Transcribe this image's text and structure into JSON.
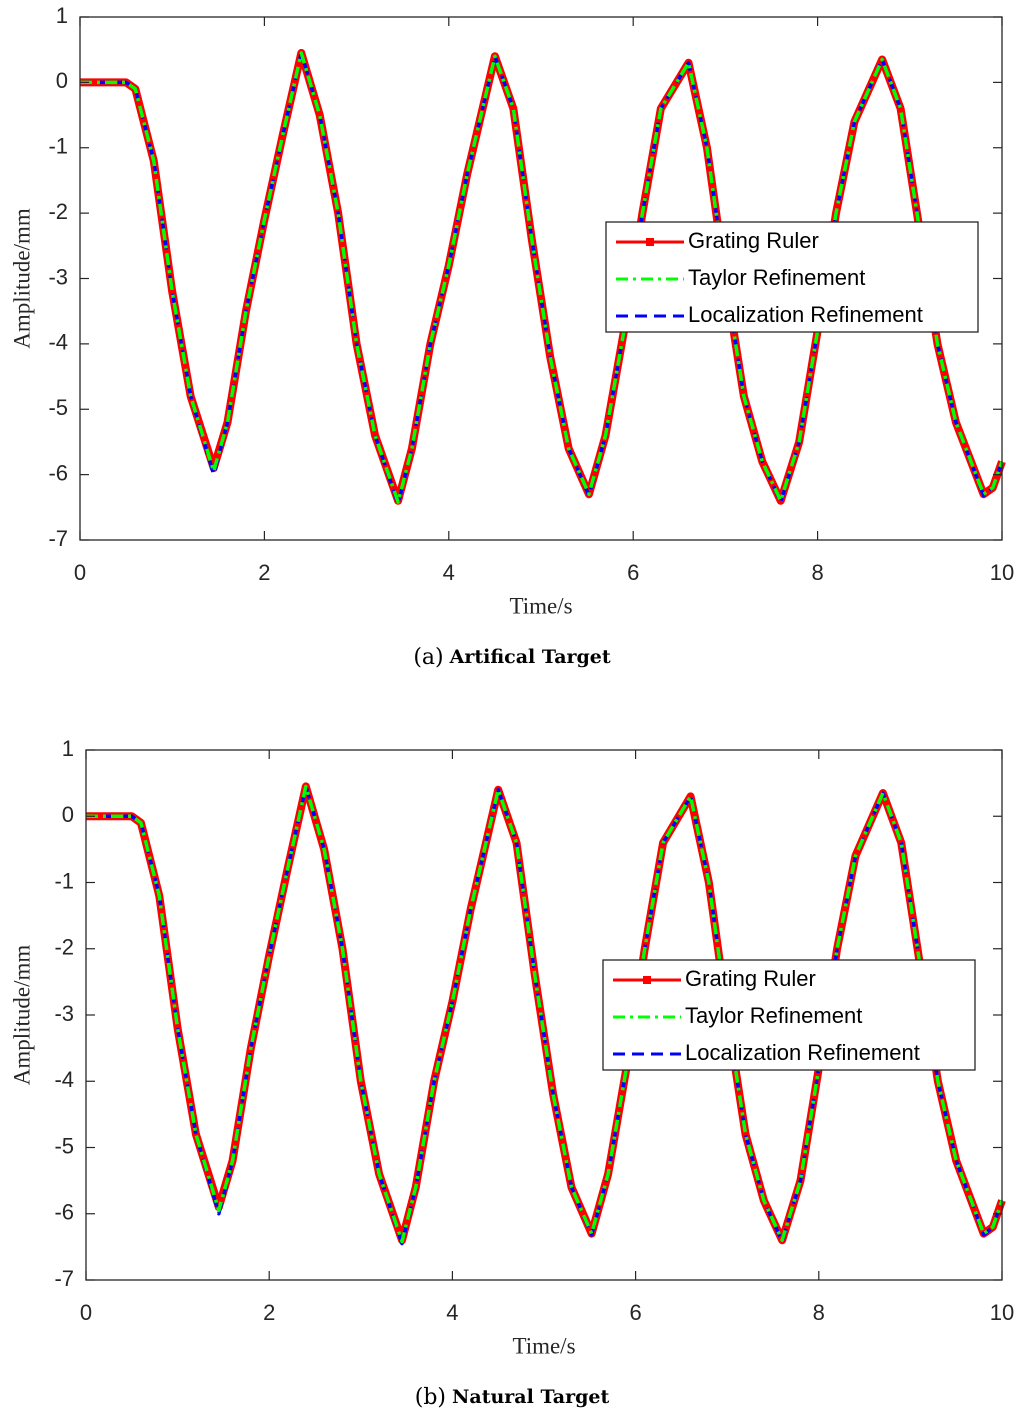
{
  "chart_data": [
    {
      "type": "line",
      "caption_label": "(a)",
      "caption": "Artifical Target",
      "xlabel": "Time/s",
      "ylabel": "Amplitude/mm",
      "xlim": [
        0,
        10
      ],
      "ylim": [
        -7,
        1
      ],
      "xticks": [
        0,
        2,
        4,
        6,
        8,
        10
      ],
      "yticks": [
        -7,
        -6,
        -5,
        -4,
        -3,
        -2,
        -1,
        0,
        1
      ],
      "legend": "right",
      "x": [
        0,
        0.5,
        0.6,
        0.8,
        1,
        1.2,
        1.45,
        1.6,
        1.8,
        2,
        2.2,
        2.4,
        2.6,
        2.8,
        3,
        3.2,
        3.45,
        3.6,
        3.8,
        4,
        4.2,
        4.5,
        4.7,
        4.9,
        5.1,
        5.3,
        5.52,
        5.7,
        5.9,
        6.1,
        6.3,
        6.6,
        6.8,
        7,
        7.2,
        7.4,
        7.6,
        7.8,
        8,
        8.2,
        8.4,
        8.7,
        8.9,
        9.1,
        9.3,
        9.5,
        9.8,
        9.9,
        10
      ],
      "series": [
        {
          "name": "Grating Ruler",
          "color": "#ff0000",
          "values": [
            0,
            0,
            -0.1,
            -1.2,
            -3.2,
            -4.8,
            -5.9,
            -5.2,
            -3.5,
            -2.1,
            -0.8,
            0.45,
            -0.5,
            -2,
            -4,
            -5.4,
            -6.4,
            -5.6,
            -4,
            -2.8,
            -1.4,
            0.4,
            -0.4,
            -2.4,
            -4.2,
            -5.6,
            -6.3,
            -5.4,
            -3.8,
            -2,
            -0.4,
            0.3,
            -1,
            -3,
            -4.8,
            -5.8,
            -6.4,
            -5.5,
            -3.8,
            -2,
            -0.6,
            0.35,
            -0.4,
            -2.2,
            -4,
            -5.2,
            -6.3,
            -6.2,
            -5.8
          ]
        },
        {
          "name": "Taylor Refinement",
          "color": "#00ff00",
          "values": [
            0,
            0,
            -0.1,
            -1.2,
            -3.2,
            -4.8,
            -5.95,
            -5.2,
            -3.5,
            -2.1,
            -0.8,
            0.45,
            -0.5,
            -2,
            -4,
            -5.4,
            -6.42,
            -5.6,
            -4,
            -2.8,
            -1.4,
            0.4,
            -0.4,
            -2.4,
            -4.2,
            -5.6,
            -6.3,
            -5.4,
            -3.8,
            -2,
            -0.4,
            0.3,
            -1,
            -3,
            -4.8,
            -5.8,
            -6.4,
            -5.5,
            -3.8,
            -2,
            -0.6,
            0.35,
            -0.4,
            -2.2,
            -4,
            -5.2,
            -6.3,
            -6.2,
            -5.8
          ]
        },
        {
          "name": "Localization Refinement",
          "color": "#0000ff",
          "values": [
            0,
            0,
            -0.1,
            -1.2,
            -3.2,
            -4.8,
            -6,
            -5.2,
            -3.5,
            -2.1,
            -0.8,
            0.45,
            -0.5,
            -2,
            -4,
            -5.4,
            -6.45,
            -5.6,
            -4,
            -2.8,
            -1.4,
            0.4,
            -0.4,
            -2.4,
            -4.2,
            -5.6,
            -6.32,
            -5.4,
            -3.8,
            -2,
            -0.4,
            0.3,
            -1,
            -3,
            -4.8,
            -5.8,
            -6.42,
            -5.5,
            -3.8,
            -2,
            -0.6,
            0.35,
            -0.4,
            -2.2,
            -4,
            -5.2,
            -6.32,
            -6.2,
            -5.8
          ]
        }
      ]
    },
    {
      "type": "line",
      "caption_label": "(b)",
      "caption": "Natural Target",
      "xlabel": "Time/s",
      "ylabel": "Amplitude/mm",
      "xlim": [
        0,
        10
      ],
      "ylim": [
        -7,
        1
      ],
      "xticks": [
        0,
        2,
        4,
        6,
        8,
        10
      ],
      "yticks": [
        -7,
        -6,
        -5,
        -4,
        -3,
        -2,
        -1,
        0,
        1
      ],
      "legend": "right",
      "x": [
        0,
        0.5,
        0.6,
        0.8,
        1,
        1.2,
        1.45,
        1.6,
        1.8,
        2,
        2.2,
        2.4,
        2.6,
        2.8,
        3,
        3.2,
        3.45,
        3.6,
        3.8,
        4,
        4.2,
        4.5,
        4.7,
        4.9,
        5.1,
        5.3,
        5.52,
        5.7,
        5.9,
        6.1,
        6.3,
        6.6,
        6.8,
        7,
        7.2,
        7.4,
        7.6,
        7.8,
        8,
        8.2,
        8.4,
        8.7,
        8.9,
        9.1,
        9.3,
        9.5,
        9.8,
        9.9,
        10
      ],
      "series": [
        {
          "name": "Grating Ruler",
          "color": "#ff0000",
          "values": [
            0,
            0,
            -0.1,
            -1.2,
            -3.2,
            -4.8,
            -5.9,
            -5.2,
            -3.5,
            -2.1,
            -0.8,
            0.45,
            -0.5,
            -2,
            -4,
            -5.4,
            -6.4,
            -5.6,
            -4,
            -2.8,
            -1.4,
            0.4,
            -0.4,
            -2.4,
            -4.2,
            -5.6,
            -6.3,
            -5.4,
            -3.8,
            -2,
            -0.4,
            0.3,
            -1,
            -3,
            -4.8,
            -5.8,
            -6.4,
            -5.5,
            -3.8,
            -2,
            -0.6,
            0.35,
            -0.4,
            -2.2,
            -4,
            -5.2,
            -6.3,
            -6.2,
            -5.8
          ]
        },
        {
          "name": "Taylor Refinement",
          "color": "#00ff00",
          "values": [
            0,
            0,
            -0.1,
            -1.2,
            -3.2,
            -4.8,
            -5.95,
            -5.2,
            -3.5,
            -2.1,
            -0.8,
            0.45,
            -0.5,
            -2,
            -4,
            -5.4,
            -6.42,
            -5.6,
            -4,
            -2.8,
            -1.4,
            0.4,
            -0.4,
            -2.4,
            -4.2,
            -5.6,
            -6.3,
            -5.4,
            -3.8,
            -2,
            -0.4,
            0.3,
            -1,
            -3,
            -4.8,
            -5.8,
            -6.4,
            -5.5,
            -3.8,
            -2,
            -0.6,
            0.35,
            -0.4,
            -2.2,
            -4,
            -5.2,
            -6.3,
            -6.2,
            -5.8
          ]
        },
        {
          "name": "Localization Refinement",
          "color": "#0000ff",
          "values": [
            0,
            0,
            -0.1,
            -1.2,
            -3.2,
            -4.8,
            -6,
            -5.2,
            -3.5,
            -2.1,
            -0.8,
            0.45,
            -0.5,
            -2,
            -4,
            -5.4,
            -6.45,
            -5.6,
            -4,
            -2.8,
            -1.4,
            0.4,
            -0.4,
            -2.4,
            -4.2,
            -5.6,
            -6.32,
            -5.4,
            -3.8,
            -2,
            -0.4,
            0.3,
            -1,
            -3,
            -4.8,
            -5.8,
            -6.42,
            -5.5,
            -3.8,
            -2,
            -0.6,
            0.35,
            -0.4,
            -2.2,
            -4,
            -5.2,
            -6.32,
            -6.2,
            -5.8
          ]
        }
      ]
    }
  ]
}
